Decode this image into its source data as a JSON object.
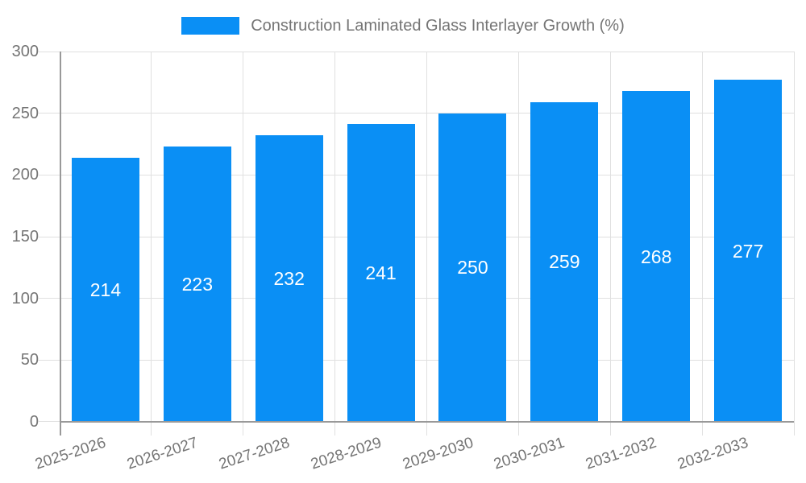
{
  "chart_data": {
    "type": "bar",
    "title": "Construction Laminated Glass Interlayer Growth (%)",
    "categories": [
      "2025-2026",
      "2026-2027",
      "2027-2028",
      "2028-2029",
      "2029-2030",
      "2030-2031",
      "2031-2032",
      "2032-2033"
    ],
    "values": [
      214,
      223,
      232,
      241,
      250,
      259,
      268,
      277
    ],
    "series": [
      {
        "name": "Construction Laminated Glass Interlayer Growth (%)",
        "values": [
          214,
          223,
          232,
          241,
          250,
          259,
          268,
          277
        ]
      }
    ],
    "xlabel": "",
    "ylabel": "",
    "ylim": [
      0,
      300
    ],
    "yticks": [
      0,
      50,
      100,
      150,
      200,
      250,
      300
    ],
    "grid": true,
    "legend_position": "top",
    "value_labels_inside_bars": true,
    "colors": {
      "bar": "#0A8FF5",
      "value_label": "#FFFFFF",
      "axis_text": "#757575",
      "axis_line": "#999999",
      "gridline": "#E0E0E0",
      "background": "#FFFFFF"
    }
  }
}
